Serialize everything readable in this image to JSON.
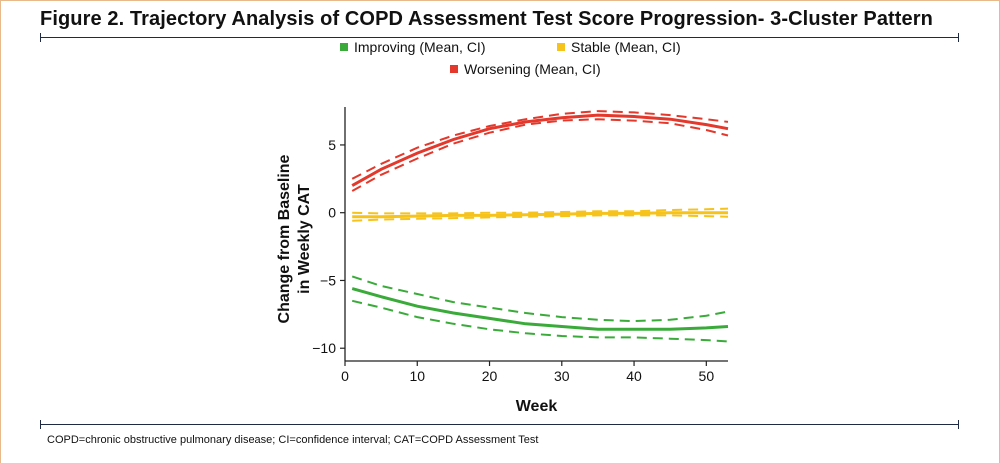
{
  "title": "Figure 2. Trajectory Analysis of COPD Assessment Test Score Progression- 3-Cluster Pattern",
  "footnote": "COPD=chronic obstructive pulmonary disease; CI=confidence interval; CAT=COPD Assessment Test",
  "colors": {
    "improving": "#3aab3a",
    "stable": "#f5c31c",
    "worsening": "#e3382b",
    "rule": "#1f2a44",
    "axis": "#222222"
  },
  "chart_data": {
    "type": "line",
    "title": "",
    "xlabel": "Week",
    "ylabel_lines": [
      "Change from Baseline",
      "in Weekly CAT"
    ],
    "xlim": [
      0,
      53
    ],
    "ylim": [
      -10.5,
      7.8
    ],
    "xticks": [
      0,
      10,
      20,
      30,
      40,
      50
    ],
    "yticks": [
      5,
      0,
      -5,
      -10
    ],
    "legend": {
      "placement": "top-center",
      "items": [
        "Improving (Mean, CI)",
        "Stable (Mean, CI)",
        "Worsening (Mean, CI)"
      ]
    },
    "x": [
      1,
      5,
      10,
      15,
      20,
      25,
      30,
      35,
      40,
      45,
      50,
      53
    ],
    "series": [
      {
        "name": "Improving (Mean, CI)",
        "color_key": "improving",
        "mean": [
          -5.6,
          -6.2,
          -6.9,
          -7.4,
          -7.8,
          -8.2,
          -8.4,
          -8.6,
          -8.6,
          -8.6,
          -8.5,
          -8.4
        ],
        "upper": [
          -4.7,
          -5.4,
          -6.0,
          -6.6,
          -7.0,
          -7.4,
          -7.7,
          -7.9,
          -8.0,
          -7.9,
          -7.6,
          -7.3
        ],
        "lower": [
          -6.5,
          -7.0,
          -7.7,
          -8.2,
          -8.6,
          -8.9,
          -9.1,
          -9.2,
          -9.2,
          -9.3,
          -9.4,
          -9.5
        ]
      },
      {
        "name": "Stable (Mean, CI)",
        "color_key": "stable",
        "mean": [
          -0.3,
          -0.3,
          -0.25,
          -0.2,
          -0.2,
          -0.15,
          -0.1,
          -0.05,
          -0.05,
          0.0,
          0.0,
          0.0
        ],
        "upper": [
          0.0,
          -0.05,
          -0.05,
          -0.05,
          0.0,
          0.0,
          0.05,
          0.1,
          0.1,
          0.2,
          0.25,
          0.3
        ],
        "lower": [
          -0.6,
          -0.5,
          -0.45,
          -0.4,
          -0.35,
          -0.3,
          -0.25,
          -0.2,
          -0.2,
          -0.2,
          -0.25,
          -0.3
        ]
      },
      {
        "name": "Worsening (Mean, CI)",
        "color_key": "worsening",
        "mean": [
          2.0,
          3.2,
          4.4,
          5.4,
          6.2,
          6.7,
          7.0,
          7.2,
          7.1,
          6.9,
          6.5,
          6.2
        ],
        "upper": [
          2.5,
          3.6,
          4.8,
          5.7,
          6.4,
          6.9,
          7.3,
          7.5,
          7.4,
          7.2,
          6.9,
          6.7
        ],
        "lower": [
          1.6,
          2.8,
          4.0,
          5.1,
          5.9,
          6.5,
          6.8,
          6.9,
          6.8,
          6.6,
          6.1,
          5.7
        ]
      }
    ]
  }
}
